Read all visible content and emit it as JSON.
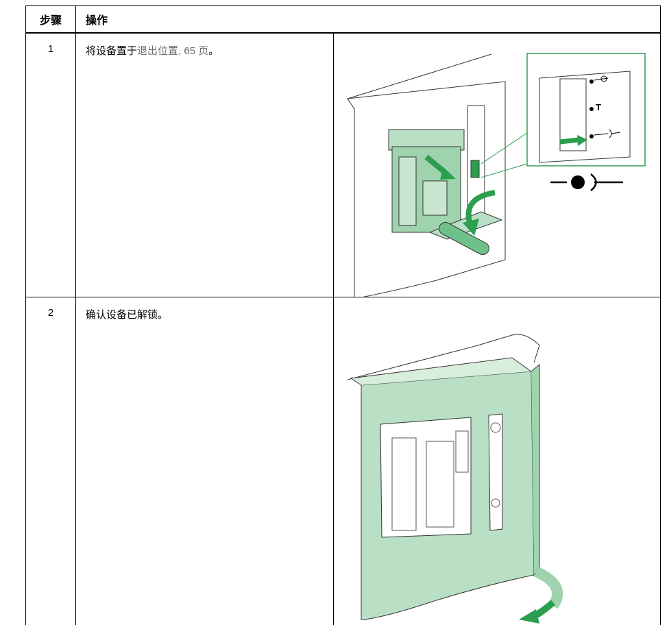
{
  "table": {
    "header": [
      "步骤",
      "操作"
    ],
    "rows": [
      {
        "step": "1",
        "text": [
          "将设备置于",
          "退出位置, 65 页",
          "。"
        ],
        "figure_text": "T"
      },
      {
        "step": "2",
        "text": [
          "确认设备已解锁。"
        ]
      }
    ]
  }
}
